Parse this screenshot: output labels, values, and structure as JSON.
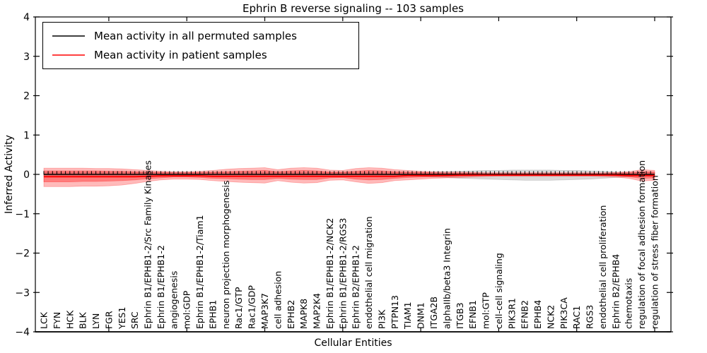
{
  "chart_data": {
    "type": "line",
    "title": "Ephrin B reverse signaling -- 103 samples",
    "xlabel": "Cellular Entities",
    "ylabel": "Inferred Activity",
    "ylim": [
      -4,
      4
    ],
    "yticks": [
      4,
      3,
      2,
      1,
      0,
      -1,
      -2,
      -3,
      -4
    ],
    "grid": false,
    "legend_position": "upper left",
    "legend": [
      {
        "label": "Mean activity in all permuted samples",
        "color": "#000000"
      },
      {
        "label": "Mean activity in patient samples",
        "color": "#ff0000"
      }
    ],
    "xtick_marks_at": [
      5,
      11,
      17,
      23,
      29,
      35,
      41,
      47
    ],
    "categories": [
      "LCK",
      "FYN",
      "HCK",
      "BLK",
      "LYN",
      "FGR",
      "YES1",
      "SRC",
      "Ephrin B1/EPHB1-2/Src Family Kinases",
      "Ephrin B1/EPHB1-2",
      "angiogenesis",
      "mol:GDP",
      "Ephrin B1/EPHB1-2/Tiam1",
      "EPHB1",
      "neuron projection morphogenesis",
      "Rac1/GTP",
      "Rac1/GDP",
      "MAP3K7",
      "cell adhesion",
      "EPHB2",
      "MAPK8",
      "MAP2K4",
      "Ephrin B1/EPHB1-2/NCK2",
      "Ephrin B1/EPHB1-2/RGS3",
      "Ephrin B2/EPHB1-2",
      "endothelial cell migration",
      "PI3K",
      "PTPN13",
      "TIAM1",
      "DNM1",
      "ITGA2B",
      "alphaIIb/beta3 Integrin",
      "ITGB3",
      "EFNB1",
      "mol:GTP",
      "cell-cell signaling",
      "PIK3R1",
      "EFNB2",
      "EPHB4",
      "NCK2",
      "PIK3CA",
      "RAC1",
      "RGS3",
      "endothelial cell proliferation",
      "Ephrin B2/EPHB4",
      "chemotaxis",
      "regulation of focal adhesion formation",
      "regulation of stress fiber formation"
    ],
    "series": [
      {
        "name": "Mean activity in all permuted samples",
        "color": "#000000",
        "marker": "vertical-tick",
        "values": [
          0,
          0,
          0,
          0,
          0,
          0,
          0,
          0,
          0,
          0,
          0,
          0,
          0,
          0,
          0,
          0,
          0,
          0,
          0,
          0,
          0,
          0,
          0,
          0,
          0,
          0,
          0,
          0,
          0,
          0,
          0,
          0,
          0,
          0,
          0,
          0,
          0,
          0,
          0,
          0,
          0,
          0,
          0,
          0,
          0,
          0,
          0,
          0
        ]
      },
      {
        "name": "Mean activity in patient samples",
        "color": "#ff0000",
        "marker": "none",
        "values": [
          -0.06,
          -0.06,
          -0.06,
          -0.06,
          -0.06,
          -0.06,
          -0.06,
          -0.06,
          -0.05,
          -0.04,
          -0.04,
          -0.04,
          -0.04,
          -0.05,
          -0.05,
          -0.05,
          -0.05,
          -0.05,
          -0.05,
          -0.05,
          -0.05,
          -0.05,
          -0.05,
          -0.05,
          -0.05,
          -0.05,
          -0.05,
          -0.05,
          -0.03,
          -0.03,
          -0.03,
          -0.03,
          -0.02,
          -0.02,
          -0.02,
          -0.02,
          -0.02,
          -0.02,
          -0.02,
          -0.02,
          -0.02,
          -0.02,
          -0.02,
          -0.02,
          -0.02,
          -0.03,
          -0.03,
          -0.03
        ]
      }
    ],
    "bands": [
      {
        "name": "permuted samples spread",
        "color": "rgba(130,130,130,0.30)",
        "upper": [
          0.05,
          0.05,
          0.05,
          0.05,
          0.05,
          0.05,
          0.05,
          0.05,
          0.05,
          0.05,
          0.05,
          0.05,
          0.05,
          0.05,
          0.05,
          0.05,
          0.05,
          0.05,
          0.05,
          0.05,
          0.05,
          0.05,
          0.05,
          0.05,
          0.05,
          0.05,
          0.05,
          0.05,
          0.05,
          0.05,
          0.06,
          0.07,
          0.08,
          0.09,
          0.1,
          0.1,
          0.11,
          0.11,
          0.11,
          0.11,
          0.1,
          0.1,
          0.09,
          0.08,
          0.06,
          0.05,
          0.05,
          0.05
        ],
        "lower": [
          -0.05,
          -0.05,
          -0.05,
          -0.05,
          -0.05,
          -0.05,
          -0.05,
          -0.05,
          -0.05,
          -0.05,
          -0.05,
          -0.05,
          -0.05,
          -0.05,
          -0.05,
          -0.05,
          -0.05,
          -0.05,
          -0.05,
          -0.05,
          -0.05,
          -0.05,
          -0.05,
          -0.05,
          -0.05,
          -0.05,
          -0.05,
          -0.05,
          -0.05,
          -0.05,
          -0.07,
          -0.08,
          -0.1,
          -0.11,
          -0.12,
          -0.13,
          -0.14,
          -0.15,
          -0.15,
          -0.15,
          -0.14,
          -0.13,
          -0.12,
          -0.1,
          -0.08,
          -0.06,
          -0.05,
          -0.05
        ]
      },
      {
        "name": "patient samples spread (outer)",
        "color": "rgba(255,0,0,0.27)",
        "upper": [
          0.16,
          0.16,
          0.16,
          0.16,
          0.15,
          0.15,
          0.14,
          0.12,
          0.1,
          0.08,
          0.07,
          0.07,
          0.08,
          0.1,
          0.13,
          0.15,
          0.16,
          0.17,
          0.12,
          0.16,
          0.17,
          0.16,
          0.11,
          0.1,
          0.15,
          0.17,
          0.16,
          0.12,
          0.1,
          0.08,
          0.07,
          0.06,
          0.06,
          0.05,
          0.04,
          0.04,
          0.04,
          0.04,
          0.04,
          0.04,
          0.04,
          0.04,
          0.04,
          0.04,
          0.05,
          0.07,
          0.12,
          0.1
        ],
        "lower": [
          -0.31,
          -0.31,
          -0.31,
          -0.3,
          -0.3,
          -0.29,
          -0.27,
          -0.23,
          -0.18,
          -0.14,
          -0.12,
          -0.12,
          -0.13,
          -0.16,
          -0.18,
          -0.2,
          -0.21,
          -0.22,
          -0.16,
          -0.2,
          -0.22,
          -0.21,
          -0.15,
          -0.14,
          -0.19,
          -0.23,
          -0.21,
          -0.16,
          -0.14,
          -0.12,
          -0.1,
          -0.09,
          -0.08,
          -0.07,
          -0.06,
          -0.05,
          -0.05,
          -0.05,
          -0.05,
          -0.05,
          -0.05,
          -0.05,
          -0.05,
          -0.06,
          -0.07,
          -0.1,
          -0.17,
          -0.15
        ]
      },
      {
        "name": "patient samples spread (inner)",
        "color": "rgba(255,0,0,0.33)",
        "upper": [
          0.09,
          0.09,
          0.09,
          0.09,
          0.09,
          0.08,
          0.08,
          0.07,
          0.06,
          0.05,
          0.04,
          0.04,
          0.05,
          0.06,
          0.07,
          0.08,
          0.09,
          0.1,
          0.07,
          0.09,
          0.1,
          0.09,
          0.06,
          0.06,
          0.08,
          0.1,
          0.09,
          0.07,
          0.06,
          0.05,
          0.04,
          0.03,
          0.03,
          0.03,
          0.02,
          0.02,
          0.02,
          0.02,
          0.02,
          0.02,
          0.02,
          0.02,
          0.02,
          0.02,
          0.03,
          0.04,
          0.07,
          0.06
        ],
        "lower": [
          -0.19,
          -0.19,
          -0.19,
          -0.18,
          -0.18,
          -0.17,
          -0.16,
          -0.14,
          -0.11,
          -0.09,
          -0.07,
          -0.07,
          -0.08,
          -0.1,
          -0.11,
          -0.12,
          -0.13,
          -0.13,
          -0.1,
          -0.12,
          -0.13,
          -0.13,
          -0.09,
          -0.08,
          -0.12,
          -0.14,
          -0.13,
          -0.1,
          -0.08,
          -0.07,
          -0.06,
          -0.05,
          -0.05,
          -0.04,
          -0.03,
          -0.03,
          -0.03,
          -0.03,
          -0.03,
          -0.03,
          -0.03,
          -0.03,
          -0.03,
          -0.03,
          -0.04,
          -0.06,
          -0.1,
          -0.09
        ]
      }
    ]
  }
}
